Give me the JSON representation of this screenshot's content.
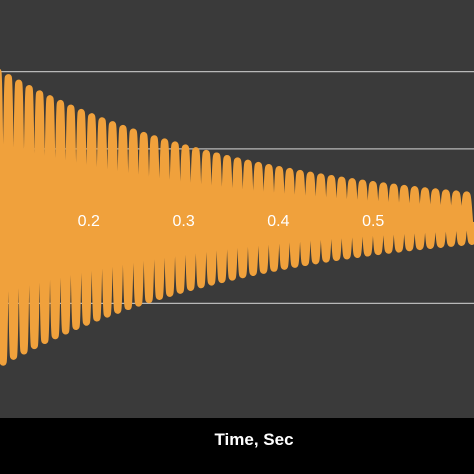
{
  "colors": {
    "background": "#000000",
    "plot_area": "#3a3a3a",
    "grid": "#b8b8b8",
    "series": "#f0a13c",
    "text": "#ffffff"
  },
  "chart_data": {
    "type": "line",
    "title": "",
    "xlabel": "Time, Sec",
    "ylabel": "",
    "xlim": [
      0.1,
      0.6
    ],
    "ylim": [
      -1.5,
      2.5
    ],
    "xticks": [
      "0.2",
      "0.3",
      "0.4",
      "0.5"
    ],
    "xtick_values": [
      0.2,
      0.3,
      0.4,
      0.5
    ],
    "grid": true,
    "grid_direction": "horizontal",
    "legend": "none",
    "series": [
      {
        "description": "damped oscillation",
        "model": "offset + amplitude * exp(-t / tau) * cos(2*pi*freq*(t - t0))",
        "offset": 0.1,
        "amplitude": 1.9,
        "tau": 0.27,
        "freq_hz": 91,
        "t0": 0.0978,
        "t_start": 0.0978,
        "t_end": 0.6
      }
    ]
  }
}
